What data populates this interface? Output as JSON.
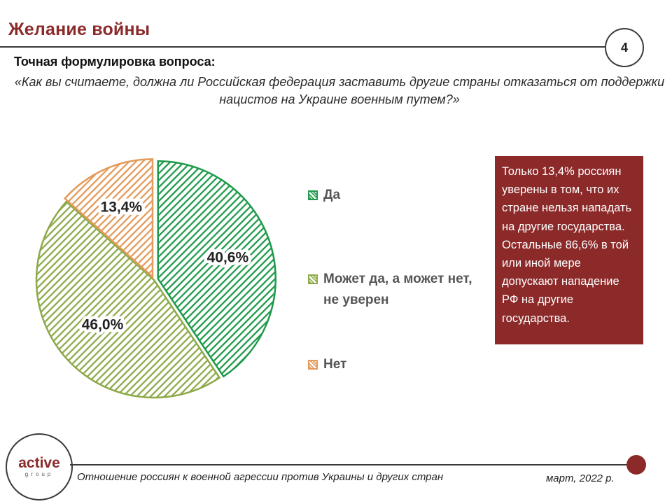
{
  "header": {
    "title": "Желание войны",
    "page_number": "4"
  },
  "question": {
    "label": "Точная формулировка вопроса:",
    "text": "«Как вы считаете, должна ли Российская федерация заставить другие страны отказаться от поддержки нацистов на Украине военным путем?»"
  },
  "chart_data": {
    "type": "pie",
    "title": "",
    "slices": [
      {
        "label": "Да",
        "value": 40.6,
        "display": "40,6%",
        "color": "#1f9a4b"
      },
      {
        "label": "Может да, а может нет, не уверен",
        "value": 46.0,
        "display": "46,0%",
        "color": "#8daa4a"
      },
      {
        "label": "Нет",
        "value": 13.4,
        "display": "13,4%",
        "color": "#e39a5a"
      }
    ],
    "legend_position": "right"
  },
  "callout": {
    "text": "Только 13,4% россиян уверены в том, что их стране нельзя нападать на другие государства. Остальные 86,6% в той или иной мере допускают нападение РФ на другие государства."
  },
  "footer": {
    "logo_main": "active",
    "logo_sub": "group",
    "left_text": "Отношение россиян к военной агрессии против Украины и других стран",
    "right_text": "март, 2022 р."
  }
}
